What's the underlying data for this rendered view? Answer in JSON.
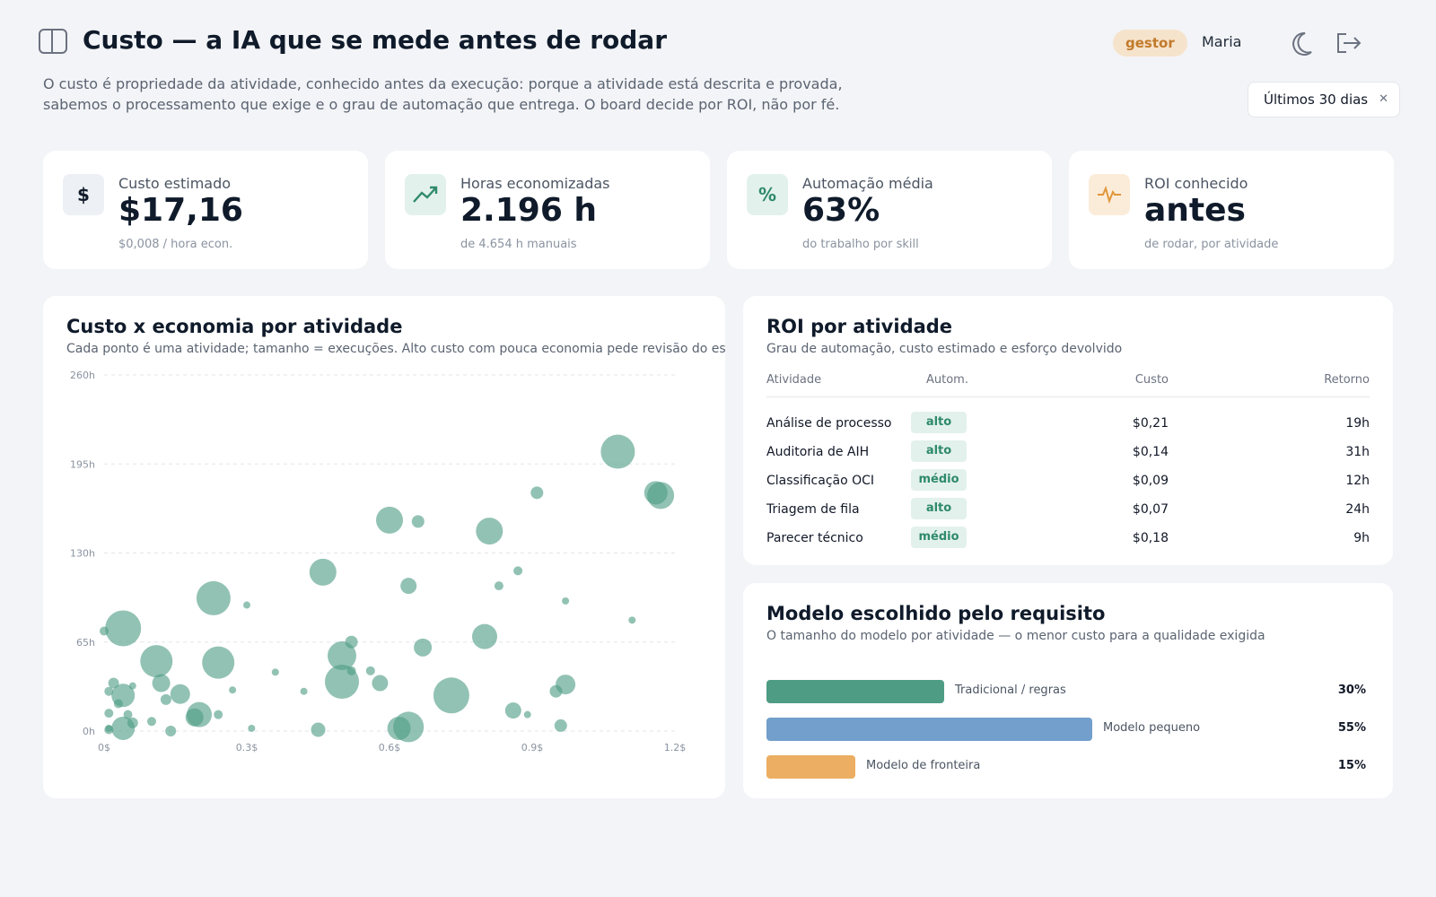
{
  "header": {
    "title": "Custo — a IA que se mede antes de rodar",
    "description": "O custo é propriedade da atividade, conhecido antes da execução: porque a atividade está descrita e provada, sabemos o processamento que exige e o grau de automação que entrega. O board decide por ROI, não por fé.",
    "role_badge": "gestor",
    "user_name": "Maria",
    "period": "Últimos 30 dias",
    "icons": [
      "sidebar-toggle-icon",
      "moon-icon",
      "logout-icon",
      "chevron-icon"
    ]
  },
  "kpis": [
    {
      "label": "Custo estimado",
      "value": "$17,16",
      "sub": "$0,008 / hora econ.",
      "icon": "$",
      "icon_name": "dollar-icon",
      "icon_bg": "#edf0f4",
      "icon_color": "#0f1a2a"
    },
    {
      "label": "Horas economizadas",
      "value": "2.196 h",
      "sub": "de 4.654 h manuais",
      "icon_name": "trend-up-icon",
      "icon_bg": "#e3f1ec",
      "icon_color": "#2e8a6b"
    },
    {
      "label": "Automação média",
      "value": "63%",
      "sub": "do trabalho por skill",
      "icon": "%",
      "icon_name": "percent-icon",
      "icon_bg": "#e3f1ec",
      "icon_color": "#2e8a6b"
    },
    {
      "label": "ROI conhecido",
      "value": "antes",
      "sub": "de rodar, por atividade",
      "icon_name": "pulse-icon",
      "icon_bg": "#fbecd9",
      "icon_color": "#e0963a"
    }
  ],
  "scatter_panel": {
    "title": "Custo x economia por atividade",
    "subtitle": "Cada ponto é uma atividade; tamanho = execuções. Alto custo com pouca economia pede revisão do escopo."
  },
  "chart_data": {
    "type": "scatter",
    "title": "Custo x economia por atividade",
    "xlabel": "",
    "ylabel": "",
    "xlim": [
      0,
      1.2
    ],
    "ylim": [
      0,
      260
    ],
    "x_ticks": [
      "0$",
      "0.3$",
      "0.6$",
      "0.9$",
      "1.2$"
    ],
    "y_ticks": [
      "0h",
      "65h",
      "130h",
      "195h",
      "260h"
    ],
    "grid": true,
    "color": "#4f9c85",
    "points": [
      {
        "x": 0.04,
        "y": 75,
        "size": 20
      },
      {
        "x": 0.11,
        "y": 51,
        "size": 18
      },
      {
        "x": 0.23,
        "y": 97,
        "size": 19
      },
      {
        "x": 0.24,
        "y": 50,
        "size": 18
      },
      {
        "x": 0.46,
        "y": 116,
        "size": 15
      },
      {
        "x": 0.5,
        "y": 55,
        "size": 16
      },
      {
        "x": 0.5,
        "y": 36,
        "size": 19
      },
      {
        "x": 0.6,
        "y": 154,
        "size": 15
      },
      {
        "x": 0.64,
        "y": 106,
        "size": 9
      },
      {
        "x": 0.66,
        "y": 153,
        "size": 7
      },
      {
        "x": 0.67,
        "y": 61,
        "size": 10
      },
      {
        "x": 0.64,
        "y": 3,
        "size": 17
      },
      {
        "x": 0.62,
        "y": 2,
        "size": 13
      },
      {
        "x": 0.73,
        "y": 26,
        "size": 20
      },
      {
        "x": 0.8,
        "y": 69,
        "size": 14
      },
      {
        "x": 0.81,
        "y": 146,
        "size": 15
      },
      {
        "x": 0.83,
        "y": 106,
        "size": 5
      },
      {
        "x": 0.87,
        "y": 117,
        "size": 5
      },
      {
        "x": 0.91,
        "y": 174,
        "size": 7
      },
      {
        "x": 0.97,
        "y": 95,
        "size": 4
      },
      {
        "x": 0.97,
        "y": 34,
        "size": 11
      },
      {
        "x": 0.95,
        "y": 29,
        "size": 7
      },
      {
        "x": 0.96,
        "y": 4,
        "size": 7
      },
      {
        "x": 0.86,
        "y": 15,
        "size": 9
      },
      {
        "x": 0.89,
        "y": 12,
        "size": 4
      },
      {
        "x": 1.08,
        "y": 204,
        "size": 19
      },
      {
        "x": 1.11,
        "y": 81,
        "size": 4
      },
      {
        "x": 1.16,
        "y": 174,
        "size": 13
      },
      {
        "x": 1.17,
        "y": 172,
        "size": 15
      },
      {
        "x": 0.58,
        "y": 35,
        "size": 9
      },
      {
        "x": 0.56,
        "y": 44,
        "size": 5
      },
      {
        "x": 0.52,
        "y": 44,
        "size": 5
      },
      {
        "x": 0.52,
        "y": 65,
        "size": 7
      },
      {
        "x": 0.04,
        "y": 26,
        "size": 13
      },
      {
        "x": 0.12,
        "y": 35,
        "size": 10
      },
      {
        "x": 0.16,
        "y": 27,
        "size": 11
      },
      {
        "x": 0.2,
        "y": 12,
        "size": 14
      },
      {
        "x": 0.19,
        "y": 10,
        "size": 10
      },
      {
        "x": 0.3,
        "y": 92,
        "size": 4
      },
      {
        "x": 0.36,
        "y": 43,
        "size": 4
      },
      {
        "x": 0.42,
        "y": 29,
        "size": 4
      },
      {
        "x": 0.45,
        "y": 1,
        "size": 8
      },
      {
        "x": 0.31,
        "y": 2,
        "size": 4
      },
      {
        "x": 0.27,
        "y": 30,
        "size": 4
      },
      {
        "x": 0.24,
        "y": 12,
        "size": 5
      },
      {
        "x": 0.14,
        "y": 0,
        "size": 6
      },
      {
        "x": 0.13,
        "y": 23,
        "size": 6
      },
      {
        "x": 0.1,
        "y": 7,
        "size": 5
      },
      {
        "x": 0.06,
        "y": 6,
        "size": 6
      },
      {
        "x": 0.04,
        "y": 2,
        "size": 13
      },
      {
        "x": 0.02,
        "y": 35,
        "size": 6
      },
      {
        "x": 0.01,
        "y": 29,
        "size": 5
      },
      {
        "x": 0.03,
        "y": 20,
        "size": 5
      },
      {
        "x": 0.01,
        "y": 13,
        "size": 5
      },
      {
        "x": 0.01,
        "y": 1,
        "size": 5
      },
      {
        "x": 0.0,
        "y": 73,
        "size": 5
      },
      {
        "x": 0.06,
        "y": 33,
        "size": 4
      },
      {
        "x": 0.05,
        "y": 12,
        "size": 5
      },
      {
        "x": 0.01,
        "y": 2,
        "size": 4
      }
    ]
  },
  "roi_panel": {
    "title": "ROI por atividade",
    "subtitle": "Grau de automação, custo estimado e esforço devolvido",
    "columns": {
      "activity": "Atividade",
      "automation": "Autom.",
      "cost": "Custo",
      "return": "Retorno"
    },
    "rows": [
      {
        "activity": "Análise de processo",
        "automation": "alto",
        "cost": "$0,21",
        "return": "19h"
      },
      {
        "activity": "Auditoria de AIH",
        "automation": "alto",
        "cost": "$0,14",
        "return": "31h"
      },
      {
        "activity": "Classificação OCI",
        "automation": "médio",
        "cost": "$0,09",
        "return": "12h"
      },
      {
        "activity": "Triagem de fila",
        "automation": "alto",
        "cost": "$0,07",
        "return": "24h"
      },
      {
        "activity": "Parecer técnico",
        "automation": "médio",
        "cost": "$0,18",
        "return": "9h"
      }
    ]
  },
  "model_panel": {
    "title": "Modelo escolhido pelo requisito",
    "subtitle": "O tamanho do modelo por atividade — o menor custo para a qualidade exigida",
    "items": [
      {
        "label": "Tradicional / regras",
        "pct_text": "30%",
        "share": 0.3,
        "color": "#4f9c85"
      },
      {
        "label": "Modelo pequeno",
        "pct_text": "55%",
        "share": 0.55,
        "color": "#729fcb"
      },
      {
        "label": "Modelo de fronteira",
        "pct_text": "15%",
        "share": 0.15,
        "color": "#ecae62"
      }
    ]
  }
}
